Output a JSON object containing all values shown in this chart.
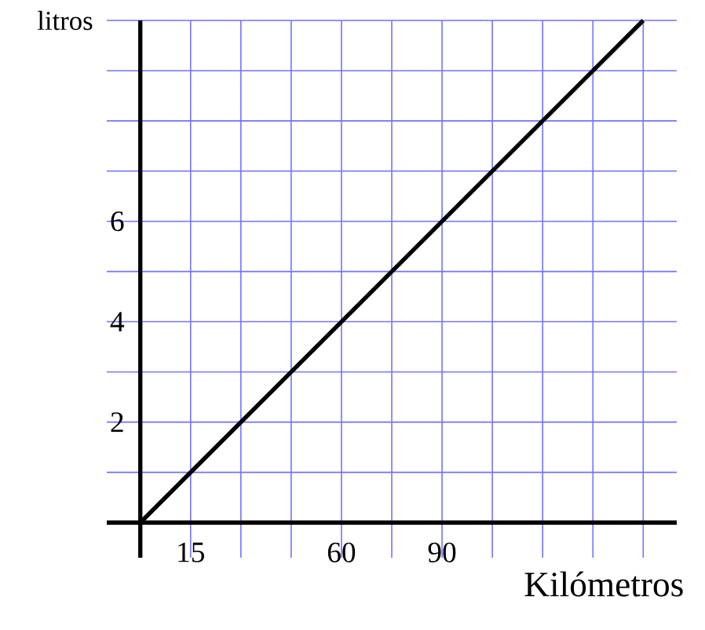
{
  "chart_data": {
    "type": "line",
    "xlabel": "Kilómetros",
    "ylabel": "litros",
    "x": [
      0,
      150
    ],
    "series": [
      {
        "color": "#000000",
        "values": [
          0,
          10
        ]
      }
    ],
    "xlim": [
      -10,
      160
    ],
    "ylim": [
      -0.7,
      10
    ],
    "xticks": [
      15,
      {
        "value": 30,
        "label": null
      },
      {
        "value": 45,
        "label": null
      },
      60,
      {
        "value": 75,
        "label": null
      },
      90,
      {
        "value": 105,
        "label": null
      },
      {
        "value": 120,
        "label": null
      },
      {
        "value": 135,
        "label": null
      },
      {
        "value": 150,
        "label": null
      }
    ],
    "yticks": [
      {
        "value": 1,
        "label": null
      },
      2,
      {
        "value": 3,
        "label": null
      },
      4,
      {
        "value": 5,
        "label": null
      },
      6,
      {
        "value": 7,
        "label": null
      },
      {
        "value": 8,
        "label": null
      },
      {
        "value": 9,
        "label": null
      },
      {
        "value": 10,
        "label": null
      }
    ],
    "grid": true,
    "marker": "none",
    "line_style": "solid"
  }
}
